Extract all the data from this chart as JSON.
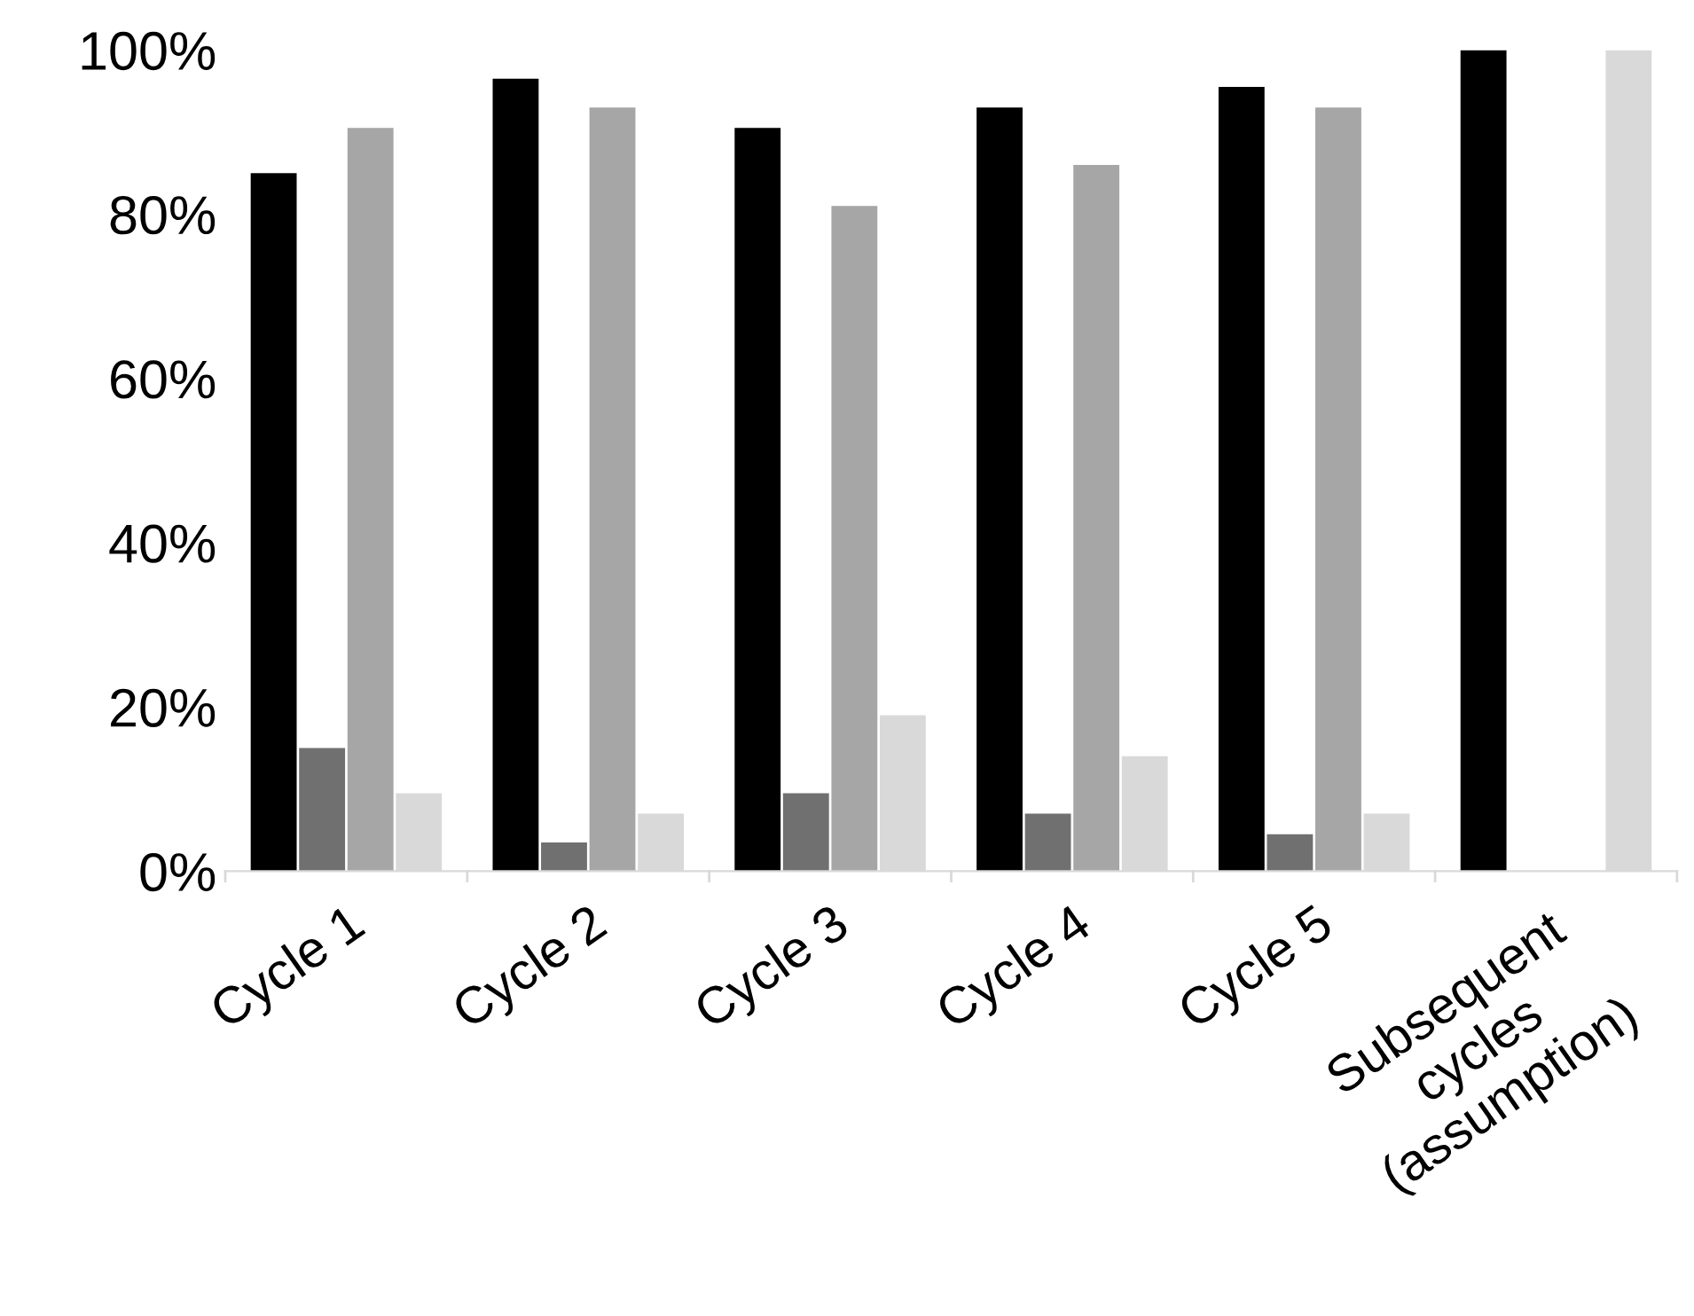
{
  "chart_data": {
    "type": "bar",
    "categories": [
      "Cycle 1",
      "Cycle 2",
      "Cycle 3",
      "Cycle 4",
      "Cycle 5",
      "Subsequent\ncycles\n(assumption)"
    ],
    "series": [
      {
        "color": "#000000",
        "values": [
          85,
          96.5,
          90.5,
          93,
          95.5,
          100
        ]
      },
      {
        "color": "#707070",
        "values": [
          15,
          3.5,
          9.5,
          7,
          4.5,
          0
        ]
      },
      {
        "color": "#a6a6a6",
        "values": [
          90.5,
          93,
          81,
          86,
          93,
          0
        ]
      },
      {
        "color": "#d9d9d9",
        "values": [
          9.5,
          7,
          19,
          14,
          7,
          100
        ]
      }
    ],
    "ylim": [
      0,
      100
    ],
    "yticks": [
      {
        "value": 0,
        "label": "0%"
      },
      {
        "value": 20,
        "label": "20%"
      },
      {
        "value": 40,
        "label": "40%"
      },
      {
        "value": 60,
        "label": "60%"
      },
      {
        "value": 80,
        "label": "80%"
      },
      {
        "value": 100,
        "label": "100%"
      }
    ],
    "grid": false,
    "legend": false
  }
}
